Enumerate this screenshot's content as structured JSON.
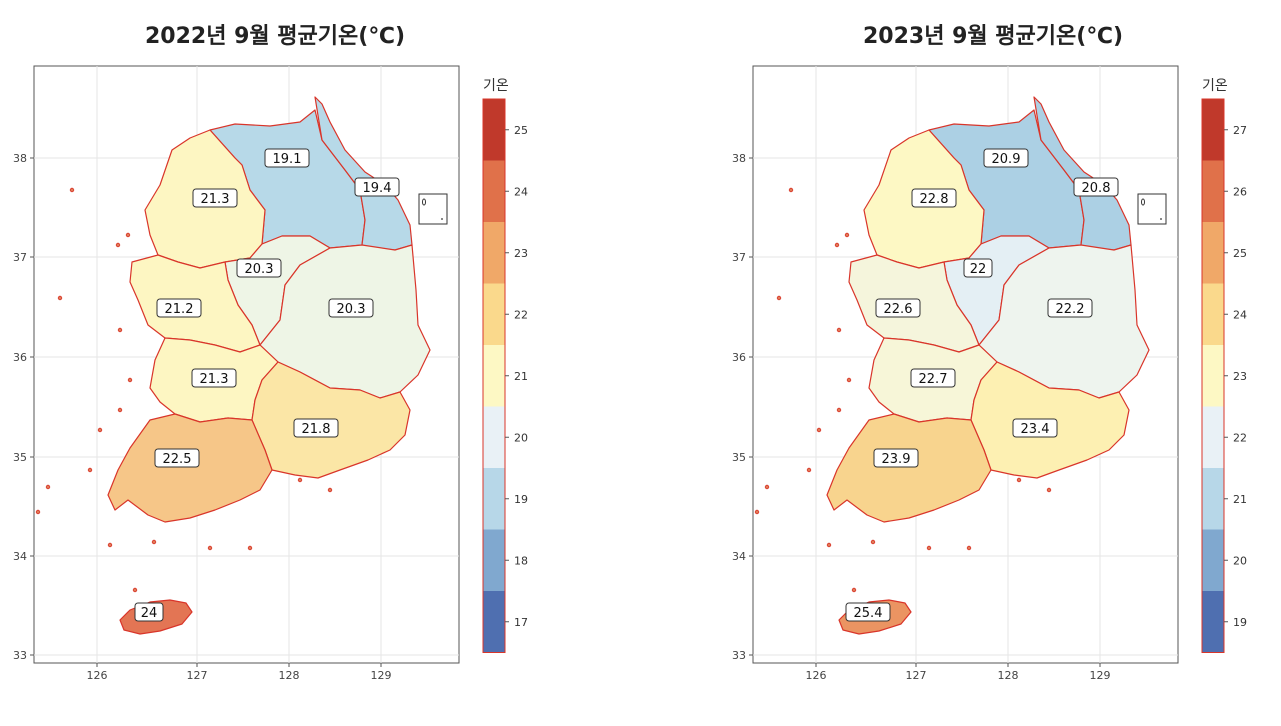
{
  "maps": [
    {
      "title": "2022년 9월 평균기온(℃)",
      "legend_title": "기온",
      "legend_ticks": [
        "25",
        "24",
        "23",
        "22",
        "21",
        "20",
        "19",
        "18",
        "17"
      ],
      "legend_colors": [
        "#c0392b",
        "#e0714a",
        "#f0a868",
        "#fad98c",
        "#fdf8c4",
        "#e9f1f6",
        "#b7d7e8",
        "#80a8cf",
        "#4f6fb0"
      ],
      "axis_x_labels": [
        "126",
        "127",
        "128",
        "129"
      ],
      "axis_y_labels": [
        "38",
        "37",
        "36",
        "35",
        "34",
        "33"
      ],
      "regions": [
        {
          "name": "gangwon-west",
          "value": "19.1",
          "color": "#b7d9e8"
        },
        {
          "name": "gangwon-east",
          "value": "19.4",
          "color": "#b7d9e8"
        },
        {
          "name": "gyeonggi",
          "value": "21.3",
          "color": "#fdf6c2"
        },
        {
          "name": "chungbuk",
          "value": "20.3",
          "color": "#eef5e6"
        },
        {
          "name": "gyeongbuk",
          "value": "20.3",
          "color": "#eef5e6"
        },
        {
          "name": "chungnam",
          "value": "21.2",
          "color": "#fdf6c2"
        },
        {
          "name": "jeonbuk",
          "value": "21.3",
          "color": "#fdf6c2"
        },
        {
          "name": "gyeongnam",
          "value": "21.8",
          "color": "#fbe6a6"
        },
        {
          "name": "jeonnam",
          "value": "22.5",
          "color": "#f6c688"
        },
        {
          "name": "jeju",
          "value": "24",
          "color": "#e37554"
        }
      ]
    },
    {
      "title": "2023년 9월 평균기온(℃)",
      "legend_title": "기온",
      "legend_ticks": [
        "27",
        "26",
        "25",
        "24",
        "23",
        "22",
        "21",
        "20",
        "19"
      ],
      "legend_colors": [
        "#c0392b",
        "#e0714a",
        "#f0a868",
        "#fad98c",
        "#fdf8c4",
        "#e9f1f6",
        "#b7d7e8",
        "#80a8cf",
        "#4f6fb0"
      ],
      "axis_x_labels": [
        "126",
        "127",
        "128",
        "129"
      ],
      "axis_y_labels": [
        "38",
        "37",
        "36",
        "35",
        "34",
        "33"
      ],
      "regions": [
        {
          "name": "gangwon-west",
          "value": "20.9",
          "color": "#acd0e4"
        },
        {
          "name": "gangwon-east",
          "value": "20.8",
          "color": "#acd0e4"
        },
        {
          "name": "gyeonggi",
          "value": "22.8",
          "color": "#fdf8c4"
        },
        {
          "name": "chungbuk",
          "value": "22",
          "color": "#e4eff4"
        },
        {
          "name": "gyeongbuk",
          "value": "22.2",
          "color": "#eef4ee"
        },
        {
          "name": "chungnam",
          "value": "22.6",
          "color": "#f5f5dc"
        },
        {
          "name": "jeonbuk",
          "value": "22.7",
          "color": "#f7f6d8"
        },
        {
          "name": "gyeongnam",
          "value": "23.4",
          "color": "#fdf0b2"
        },
        {
          "name": "jeonnam",
          "value": "23.9",
          "color": "#f8d48e"
        },
        {
          "name": "jeju",
          "value": "25.4",
          "color": "#eb9462"
        }
      ]
    }
  ]
}
